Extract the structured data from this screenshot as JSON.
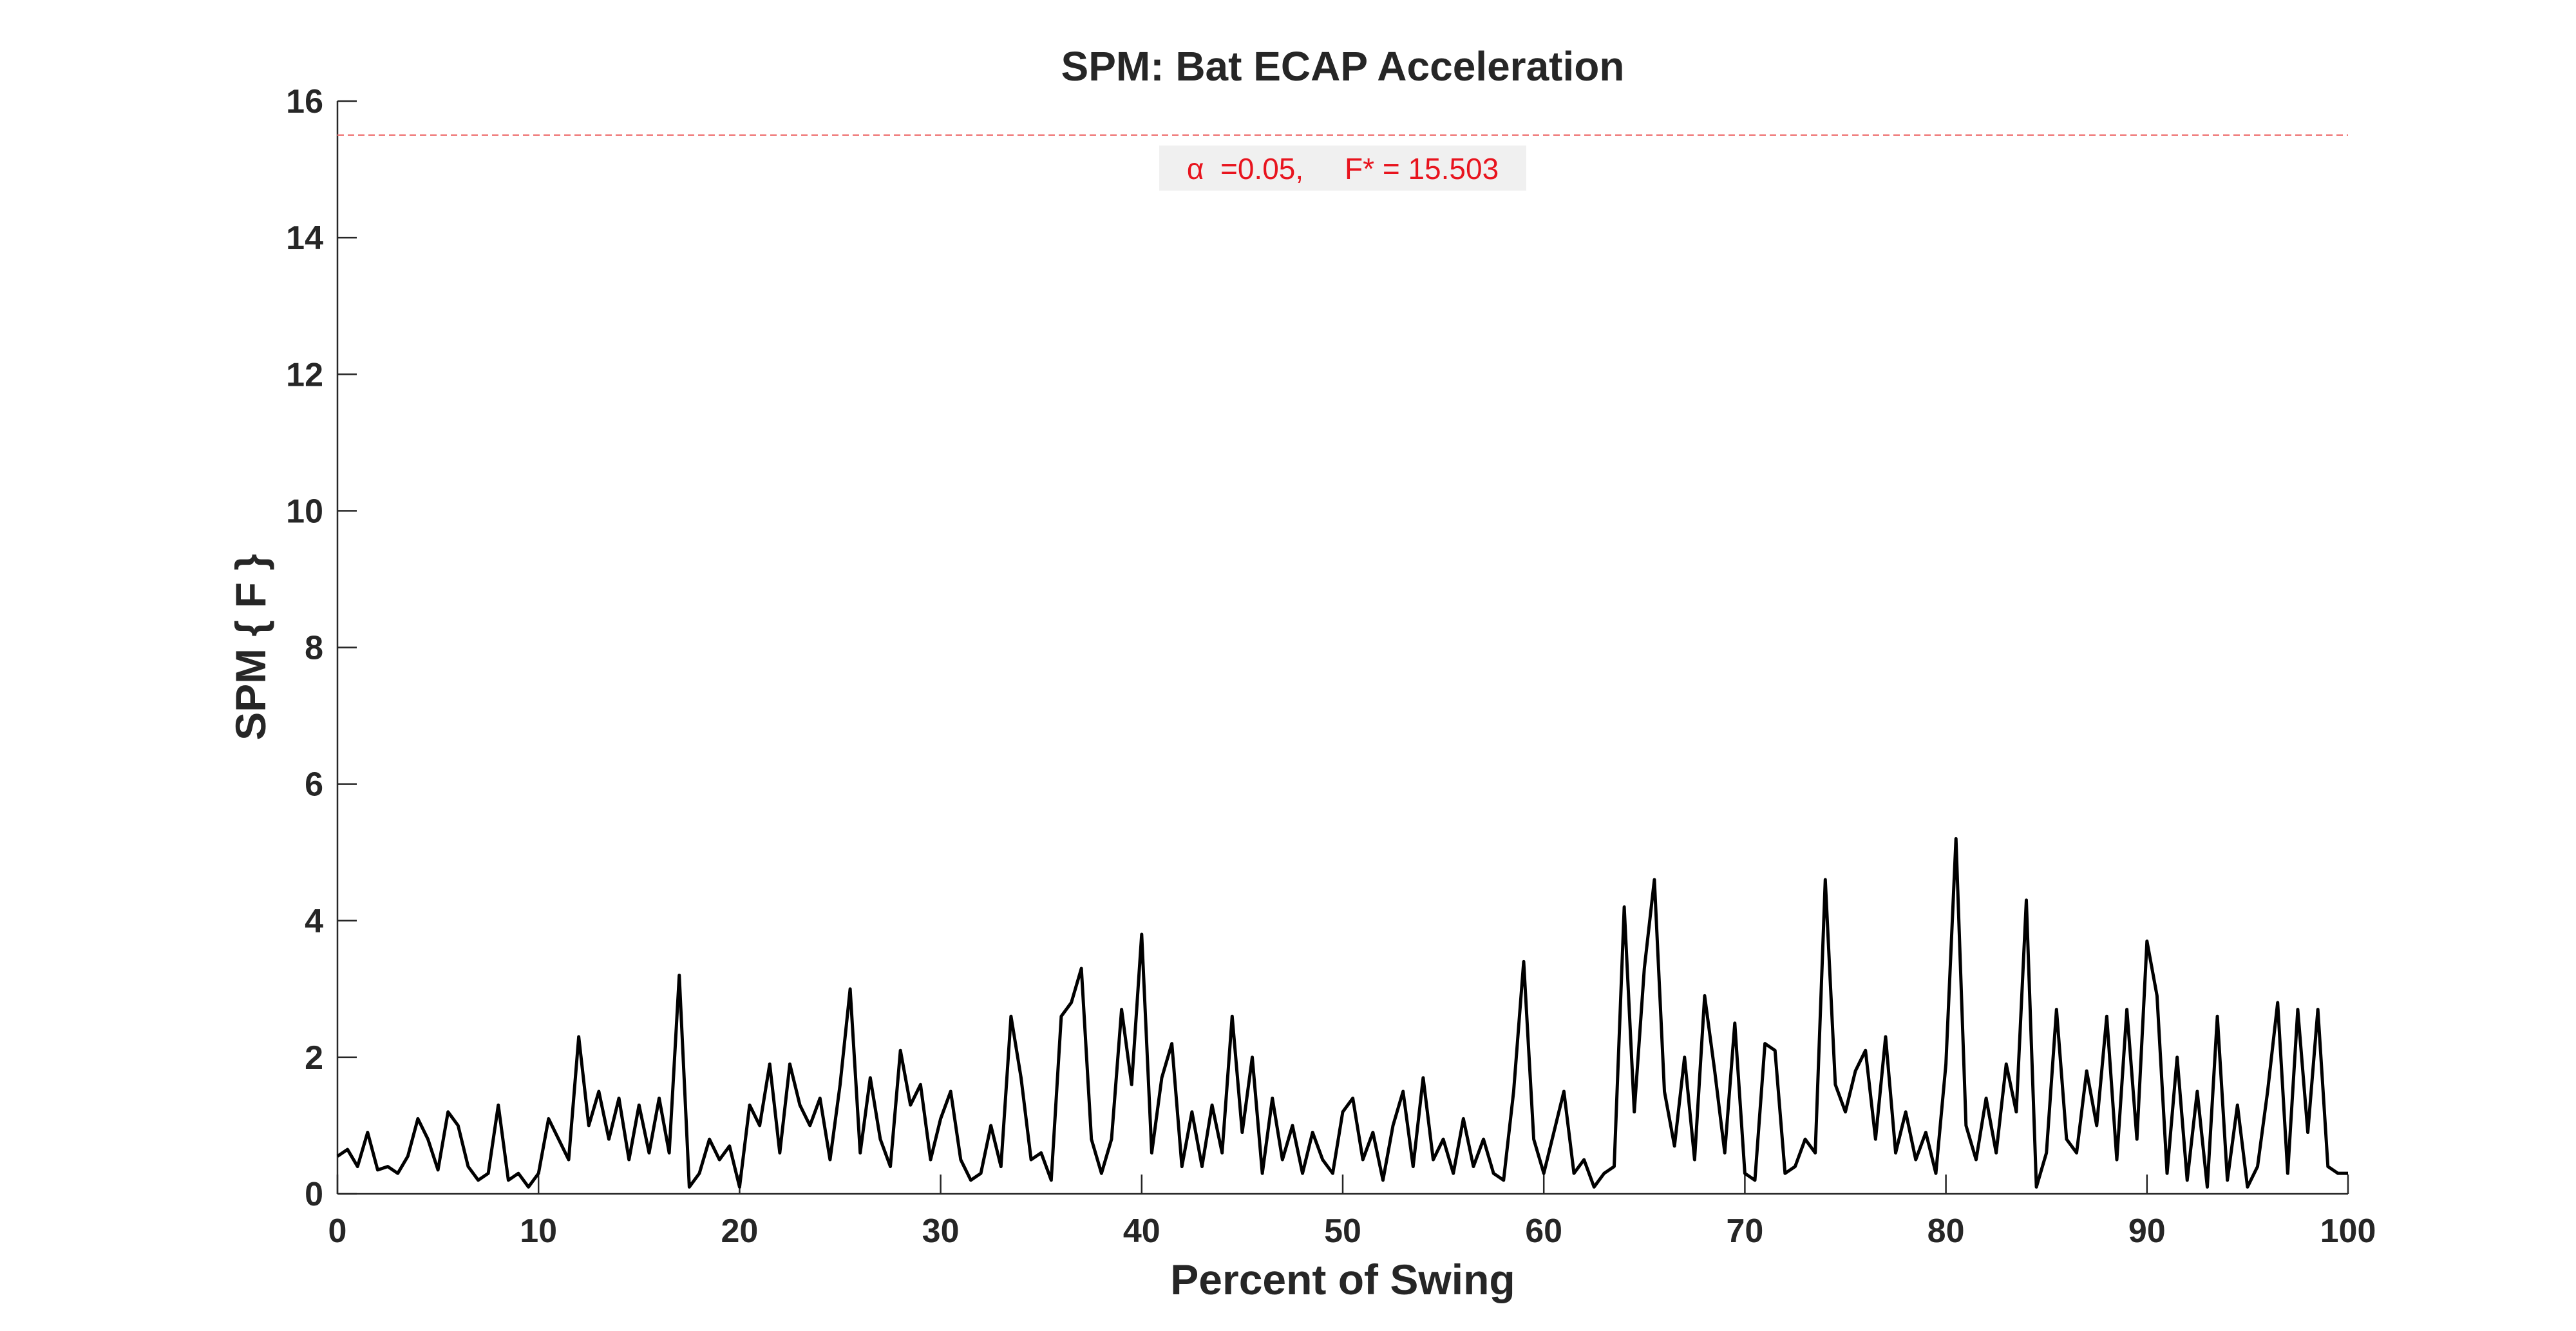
{
  "chart_data": {
    "type": "line",
    "title": "SPM: Bat ECAP Acceleration",
    "xlabel": "Percent of Swing",
    "ylabel": "SPM { F }",
    "xlim": [
      0,
      100
    ],
    "xticks": [
      0,
      10,
      20,
      30,
      40,
      50,
      60,
      70,
      80,
      90,
      100
    ],
    "ylim": [
      0,
      16
    ],
    "yticks": [
      0,
      2,
      4,
      6,
      8,
      10,
      12,
      14,
      16
    ],
    "threshold": {
      "value": 15.503,
      "color": "#f08080",
      "label": "α  =0.05,     F* = 15.503",
      "label_color": "#e8141e"
    },
    "series": [
      {
        "color": "#000000",
        "x": [
          0,
          0.5,
          1,
          1.5,
          2,
          2.5,
          3,
          3.5,
          4,
          4.5,
          5,
          5.5,
          6,
          6.5,
          7,
          7.5,
          8,
          8.5,
          9,
          9.5,
          10,
          10.5,
          11,
          11.5,
          12,
          12.5,
          13,
          13.5,
          14,
          14.5,
          15,
          15.5,
          16,
          16.5,
          17,
          17.5,
          18,
          18.5,
          19,
          19.5,
          20,
          20.5,
          21,
          21.5,
          22,
          22.5,
          23,
          23.5,
          24,
          24.5,
          25,
          25.5,
          26,
          26.5,
          27,
          27.5,
          28,
          28.5,
          29,
          29.5,
          30,
          30.5,
          31,
          31.5,
          32,
          32.5,
          33,
          33.5,
          34,
          34.5,
          35,
          35.5,
          36,
          36.5,
          37,
          37.5,
          38,
          38.5,
          39,
          39.5,
          40,
          40.5,
          41,
          41.5,
          42,
          42.5,
          43,
          43.5,
          44,
          44.5,
          45,
          45.5,
          46,
          46.5,
          47,
          47.5,
          48,
          48.5,
          49,
          49.5,
          50,
          50.5,
          51,
          51.5,
          52,
          52.5,
          53,
          53.5,
          54,
          54.5,
          55,
          55.5,
          56,
          56.5,
          57,
          57.5,
          58,
          58.5,
          59,
          59.5,
          60,
          60.5,
          61,
          61.5,
          62,
          62.5,
          63,
          63.5,
          64,
          64.5,
          65,
          65.5,
          66,
          66.5,
          67,
          67.5,
          68,
          68.5,
          69,
          69.5,
          70,
          70.5,
          71,
          71.5,
          72,
          72.5,
          73,
          73.5,
          74,
          74.5,
          75,
          75.5,
          76,
          76.5,
          77,
          77.5,
          78,
          78.5,
          79,
          79.5,
          80,
          80.5,
          81,
          81.5,
          82,
          82.5,
          83,
          83.5,
          84,
          84.5,
          85,
          85.5,
          86,
          86.5,
          87,
          87.5,
          88,
          88.5,
          89,
          89.5,
          90,
          90.5,
          91,
          91.5,
          92,
          92.5,
          93,
          93.5,
          94,
          94.5,
          95,
          95.5,
          96,
          96.5,
          97,
          97.5,
          98,
          98.5,
          99,
          99.5,
          100
        ],
        "values": [
          0.55,
          0.65,
          0.4,
          0.9,
          0.35,
          0.4,
          0.3,
          0.55,
          1.1,
          0.8,
          0.35,
          1.2,
          1.0,
          0.4,
          0.2,
          0.3,
          1.3,
          0.2,
          0.3,
          0.1,
          0.3,
          1.1,
          0.8,
          0.5,
          2.3,
          1.0,
          1.5,
          0.8,
          1.4,
          0.5,
          1.3,
          0.6,
          1.4,
          0.6,
          3.2,
          0.1,
          0.3,
          0.8,
          0.5,
          0.7,
          0.1,
          1.3,
          1.0,
          1.9,
          0.6,
          1.9,
          1.3,
          1.0,
          1.4,
          0.5,
          1.6,
          3.0,
          0.6,
          1.7,
          0.8,
          0.4,
          2.1,
          1.3,
          1.6,
          0.5,
          1.1,
          1.5,
          0.5,
          0.2,
          0.3,
          1.0,
          0.4,
          2.6,
          1.7,
          0.5,
          0.6,
          0.2,
          2.6,
          2.8,
          3.3,
          0.8,
          0.3,
          0.8,
          2.7,
          1.6,
          3.8,
          0.6,
          1.7,
          2.2,
          0.4,
          1.2,
          0.4,
          1.3,
          0.6,
          2.6,
          0.9,
          2.0,
          0.3,
          1.4,
          0.5,
          1.0,
          0.3,
          0.9,
          0.5,
          0.3,
          1.2,
          1.4,
          0.5,
          0.9,
          0.2,
          1.0,
          1.5,
          0.4,
          1.7,
          0.5,
          0.8,
          0.3,
          1.1,
          0.4,
          0.8,
          0.3,
          0.2,
          1.5,
          3.4,
          0.8,
          0.3,
          0.9,
          1.5,
          0.3,
          0.5,
          0.1,
          0.3,
          0.4,
          4.2,
          1.2,
          3.3,
          4.6,
          1.5,
          0.7,
          2.0,
          0.5,
          2.9,
          1.8,
          0.6,
          2.5,
          0.3,
          0.2,
          2.2,
          2.1,
          0.3,
          0.4,
          0.8,
          0.6,
          4.6,
          1.6,
          1.2,
          1.8,
          2.1,
          0.8,
          2.3,
          0.6,
          1.2,
          0.5,
          0.9,
          0.3,
          1.9,
          5.2,
          1.0,
          0.5,
          1.4,
          0.6,
          1.9,
          1.2,
          4.3,
          0.1,
          0.6,
          2.7,
          0.8,
          0.6,
          1.8,
          1.0,
          2.6,
          0.5,
          2.7,
          0.8,
          3.7,
          2.9,
          0.3,
          2.0,
          0.2,
          1.5,
          0.1,
          2.6,
          0.2,
          1.3,
          0.1,
          0.4,
          1.5,
          2.8,
          0.3,
          2.7,
          0.9,
          2.7,
          0.4,
          0.3,
          0.3
        ]
      }
    ]
  }
}
